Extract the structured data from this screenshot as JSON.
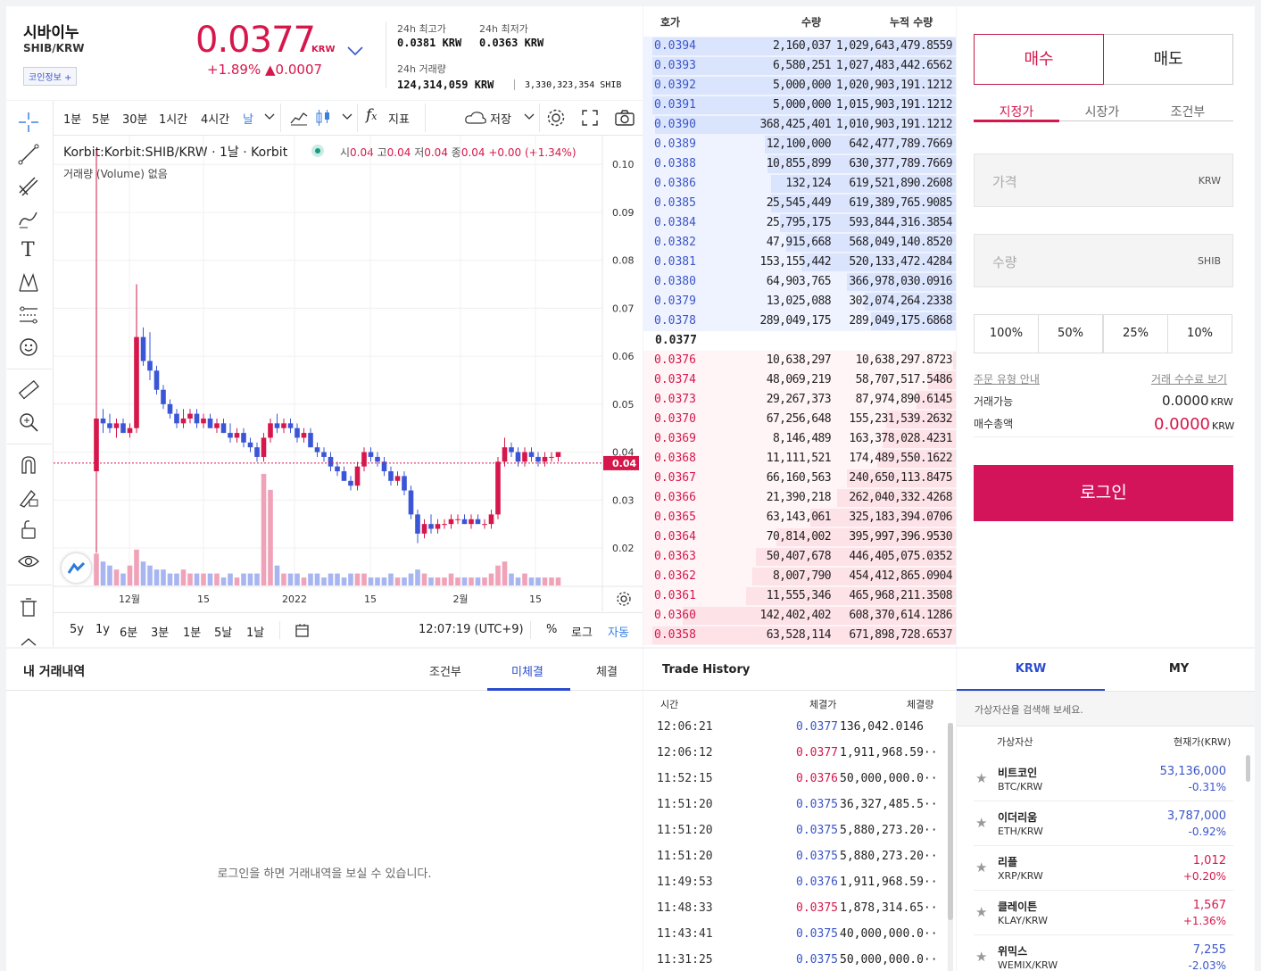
{
  "header": {
    "coin_name": "시바이누",
    "pair": "SHIB/KRW",
    "coin_info_btn": "코인정보 +",
    "price": "0.0377",
    "price_unit": "KRW",
    "change_pct": "+1.89%",
    "change_abs": "▲0.0007",
    "high_label": "24h 최고가",
    "high_value": "0.0381 KRW",
    "low_label": "24h 최저가",
    "low_value": "0.0363 KRW",
    "volume_label": "24h 거래량",
    "volume_value": "124,314,059 KRW",
    "volume_shib": "3,330,323,354 SHIB"
  },
  "chart_toolbar": {
    "intervals": [
      "1분",
      "5분",
      "30분",
      "1시간",
      "4시간",
      "날"
    ],
    "indicator": "지표",
    "save": "저장"
  },
  "chart_legend": {
    "symbol": "Korbit:Korbit:SHIB/KRW · 1날 · Korbit",
    "o_label": "시",
    "o_val": "0.04",
    "h_label": "고",
    "h_val": "0.04",
    "l_label": "저",
    "l_val": "0.04",
    "c_label": "종",
    "c_val": "0.04",
    "chg": "+0.00 (+1.34%)",
    "volume_line": "거래량 (Volume)  없음"
  },
  "chart_bottom": {
    "ranges": [
      "5y",
      "1y",
      "6분",
      "3분",
      "1분",
      "5날",
      "1날"
    ],
    "time": "12:07:19 (UTC+9)",
    "pct": "%",
    "log": "로그",
    "auto": "자동"
  },
  "chart_data": {
    "type": "candlestick",
    "price_axis_ticks": [
      "0.10",
      "0.09",
      "0.08",
      "0.07",
      "0.06",
      "0.05",
      "0.04",
      "0.03",
      "0.02"
    ],
    "time_axis_ticks": [
      "12월",
      "15",
      "2022",
      "15",
      "2월",
      "15"
    ],
    "current_price_label": "0.04",
    "ylim": [
      0.012,
      0.106
    ],
    "candles": [
      [
        0.036,
        0.103,
        0.019,
        0.047
      ],
      [
        0.047,
        0.049,
        0.044,
        0.046
      ],
      [
        0.046,
        0.048,
        0.044,
        0.045
      ],
      [
        0.045,
        0.047,
        0.043,
        0.046
      ],
      [
        0.046,
        0.047,
        0.044,
        0.044
      ],
      [
        0.044,
        0.046,
        0.043,
        0.045
      ],
      [
        0.045,
        0.075,
        0.044,
        0.064
      ],
      [
        0.064,
        0.066,
        0.058,
        0.059
      ],
      [
        0.059,
        0.065,
        0.055,
        0.057
      ],
      [
        0.057,
        0.058,
        0.052,
        0.053
      ],
      [
        0.053,
        0.054,
        0.049,
        0.05
      ],
      [
        0.05,
        0.051,
        0.047,
        0.048
      ],
      [
        0.048,
        0.049,
        0.045,
        0.046
      ],
      [
        0.046,
        0.049,
        0.045,
        0.047
      ],
      [
        0.047,
        0.049,
        0.046,
        0.048
      ],
      [
        0.048,
        0.049,
        0.045,
        0.046
      ],
      [
        0.046,
        0.048,
        0.045,
        0.047
      ],
      [
        0.047,
        0.048,
        0.045,
        0.045
      ],
      [
        0.045,
        0.047,
        0.044,
        0.046
      ],
      [
        0.046,
        0.047,
        0.044,
        0.044
      ],
      [
        0.044,
        0.046,
        0.042,
        0.043
      ],
      [
        0.043,
        0.045,
        0.042,
        0.044
      ],
      [
        0.044,
        0.045,
        0.041,
        0.042
      ],
      [
        0.042,
        0.043,
        0.04,
        0.041
      ],
      [
        0.041,
        0.042,
        0.038,
        0.039
      ],
      [
        0.039,
        0.044,
        0.038,
        0.043
      ],
      [
        0.043,
        0.047,
        0.042,
        0.046
      ],
      [
        0.046,
        0.048,
        0.044,
        0.045
      ],
      [
        0.045,
        0.047,
        0.044,
        0.046
      ],
      [
        0.046,
        0.047,
        0.044,
        0.045
      ],
      [
        0.045,
        0.046,
        0.042,
        0.043
      ],
      [
        0.043,
        0.045,
        0.042,
        0.044
      ],
      [
        0.044,
        0.045,
        0.041,
        0.041
      ],
      [
        0.041,
        0.042,
        0.039,
        0.04
      ],
      [
        0.04,
        0.041,
        0.038,
        0.039
      ],
      [
        0.039,
        0.04,
        0.036,
        0.037
      ],
      [
        0.037,
        0.038,
        0.035,
        0.036
      ],
      [
        0.036,
        0.037,
        0.034,
        0.034
      ],
      [
        0.034,
        0.035,
        0.032,
        0.033
      ],
      [
        0.033,
        0.038,
        0.032,
        0.037
      ],
      [
        0.037,
        0.041,
        0.036,
        0.04
      ],
      [
        0.04,
        0.041,
        0.038,
        0.039
      ],
      [
        0.039,
        0.04,
        0.037,
        0.038
      ],
      [
        0.038,
        0.039,
        0.035,
        0.036
      ],
      [
        0.036,
        0.037,
        0.033,
        0.034
      ],
      [
        0.034,
        0.036,
        0.033,
        0.035
      ],
      [
        0.035,
        0.036,
        0.031,
        0.032
      ],
      [
        0.032,
        0.033,
        0.026,
        0.027
      ],
      [
        0.027,
        0.028,
        0.021,
        0.023
      ],
      [
        0.023,
        0.026,
        0.022,
        0.025
      ],
      [
        0.025,
        0.027,
        0.023,
        0.024
      ],
      [
        0.024,
        0.026,
        0.023,
        0.025
      ],
      [
        0.025,
        0.026,
        0.024,
        0.025
      ],
      [
        0.025,
        0.027,
        0.024,
        0.026
      ],
      [
        0.026,
        0.027,
        0.025,
        0.026
      ],
      [
        0.026,
        0.027,
        0.025,
        0.025
      ],
      [
        0.025,
        0.027,
        0.024,
        0.026
      ],
      [
        0.026,
        0.027,
        0.025,
        0.025
      ],
      [
        0.025,
        0.026,
        0.024,
        0.025
      ],
      [
        0.025,
        0.028,
        0.024,
        0.027
      ],
      [
        0.027,
        0.039,
        0.026,
        0.038
      ],
      [
        0.038,
        0.043,
        0.037,
        0.041
      ],
      [
        0.041,
        0.042,
        0.039,
        0.04
      ],
      [
        0.04,
        0.041,
        0.037,
        0.038
      ],
      [
        0.038,
        0.041,
        0.037,
        0.04
      ],
      [
        0.04,
        0.041,
        0.038,
        0.039
      ],
      [
        0.039,
        0.04,
        0.037,
        0.038
      ],
      [
        0.038,
        0.04,
        0.037,
        0.039
      ],
      [
        0.039,
        0.04,
        0.038,
        0.039
      ],
      [
        0.039,
        0.04,
        0.038,
        0.04
      ]
    ],
    "volumes": [
      8,
      6,
      5,
      4,
      3,
      5,
      9,
      6,
      5,
      4,
      4,
      3,
      3,
      4,
      3,
      3,
      3,
      3,
      3,
      2,
      3,
      2,
      3,
      3,
      3,
      28,
      24,
      5,
      3,
      3,
      3,
      2,
      3,
      3,
      2,
      3,
      3,
      2,
      3,
      3,
      3,
      2,
      2,
      2,
      3,
      2,
      2,
      3,
      4,
      3,
      2,
      2,
      2,
      3,
      2,
      2,
      2,
      2,
      2,
      3,
      5,
      6,
      3,
      2,
      3,
      2,
      2,
      2,
      2,
      2
    ]
  },
  "orderbook": {
    "headers": [
      "호가",
      "수량",
      "누적 수량"
    ],
    "current_price": "0.0377",
    "asks": [
      {
        "price": "0.0394",
        "qty": "2,160,037",
        "cum": "1,029,643,479.8559",
        "w": 1.0
      },
      {
        "price": "0.0393",
        "qty": "6,580,251",
        "cum": "1,027,483,442.6562",
        "w": 1.0
      },
      {
        "price": "0.0392",
        "qty": "5,000,000",
        "cum": "1,020,903,191.1212",
        "w": 1.0
      },
      {
        "price": "0.0391",
        "qty": "5,000,000",
        "cum": "1,015,903,191.1212",
        "w": 1.0
      },
      {
        "price": "0.0390",
        "qty": "368,425,401",
        "cum": "1,010,903,191.1212",
        "w": 0.99
      },
      {
        "price": "0.0389",
        "qty": "12,100,000",
        "cum": "642,477,789.7669",
        "w": 0.63
      },
      {
        "price": "0.0388",
        "qty": "10,855,899",
        "cum": "630,377,789.7669",
        "w": 0.62
      },
      {
        "price": "0.0386",
        "qty": "132,124",
        "cum": "619,521,890.2608",
        "w": 0.61
      },
      {
        "price": "0.0385",
        "qty": "25,545,449",
        "cum": "619,389,765.9085",
        "w": 0.61
      },
      {
        "price": "0.0384",
        "qty": "25,795,175",
        "cum": "593,844,316.3854",
        "w": 0.58
      },
      {
        "price": "0.0382",
        "qty": "47,915,668",
        "cum": "568,049,140.8520",
        "w": 0.56
      },
      {
        "price": "0.0381",
        "qty": "153,155,442",
        "cum": "520,133,472.4284",
        "w": 0.51
      },
      {
        "price": "0.0380",
        "qty": "64,903,765",
        "cum": "366,978,030.0916",
        "w": 0.36
      },
      {
        "price": "0.0379",
        "qty": "13,025,088",
        "cum": "302,074,264.2338",
        "w": 0.3
      },
      {
        "price": "0.0378",
        "qty": "289,049,175",
        "cum": "289,049,175.6868",
        "w": 0.28
      }
    ],
    "bids": [
      {
        "price": "0.0376",
        "qty": "10,638,297",
        "cum": "10,638,297.8723",
        "w": 0.01
      },
      {
        "price": "0.0374",
        "qty": "48,069,219",
        "cum": "58,707,517.5486",
        "w": 0.09
      },
      {
        "price": "0.0373",
        "qty": "29,267,373",
        "cum": "87,974,890.6145",
        "w": 0.13
      },
      {
        "price": "0.0370",
        "qty": "67,256,648",
        "cum": "155,231,539.2632",
        "w": 0.23
      },
      {
        "price": "0.0369",
        "qty": "8,146,489",
        "cum": "163,378,028.4231",
        "w": 0.24
      },
      {
        "price": "0.0368",
        "qty": "11,111,521",
        "cum": "174,489,550.1622",
        "w": 0.26
      },
      {
        "price": "0.0367",
        "qty": "66,160,563",
        "cum": "240,650,113.8475",
        "w": 0.36
      },
      {
        "price": "0.0366",
        "qty": "21,390,218",
        "cum": "262,040,332.4268",
        "w": 0.39
      },
      {
        "price": "0.0365",
        "qty": "63,143,061",
        "cum": "325,183,394.0706",
        "w": 0.48
      },
      {
        "price": "0.0364",
        "qty": "70,814,002",
        "cum": "395,997,396.9530",
        "w": 0.59
      },
      {
        "price": "0.0363",
        "qty": "50,407,678",
        "cum": "446,405,075.0352",
        "w": 0.66
      },
      {
        "price": "0.0362",
        "qty": "8,007,790",
        "cum": "454,412,865.0904",
        "w": 0.67
      },
      {
        "price": "0.0361",
        "qty": "11,555,346",
        "cum": "465,968,211.3508",
        "w": 0.69
      },
      {
        "price": "0.0360",
        "qty": "142,402,402",
        "cum": "608,370,614.1286",
        "w": 0.9
      },
      {
        "price": "0.0358",
        "qty": "63,528,114",
        "cum": "671,898,728.6537",
        "w": 1.0
      }
    ]
  },
  "order_form": {
    "buy_tab": "매수",
    "sell_tab": "매도",
    "types": [
      "지정가",
      "시장가",
      "조건부"
    ],
    "price_ph": "가격",
    "price_unit": "KRW",
    "qty_ph": "수량",
    "qty_unit": "SHIB",
    "pcts": [
      "100%",
      "50%",
      "25%",
      "10%"
    ],
    "guide_link": "주문 유형 안내",
    "fee_link": "거래 수수료 보기",
    "available_label": "거래가능",
    "available_value": "0.0000",
    "total_label": "매수총액",
    "total_value": "0.0000",
    "unit": "KRW",
    "login": "로그인"
  },
  "my_trades": {
    "title": "내 거래내역",
    "tabs": [
      "조건부",
      "미체결",
      "체결"
    ],
    "empty_msg": "로그인을 하면 거래내역을 보실 수 있습니다."
  },
  "trade_history": {
    "title": "Trade History",
    "headers": [
      "시간",
      "체결가",
      "체결량"
    ],
    "rows": [
      {
        "time": "12:06:21",
        "price": "0.0377",
        "amount": "136,042.0146",
        "color": "#3a55c8"
      },
      {
        "time": "12:06:12",
        "price": "0.0377",
        "amount": "1,911,968.59··",
        "color": "#d6174b"
      },
      {
        "time": "11:52:15",
        "price": "0.0376",
        "amount": "50,000,000.0··",
        "color": "#d6174b"
      },
      {
        "time": "11:51:20",
        "price": "0.0375",
        "amount": "36,327,485.5··",
        "color": "#3a55c8"
      },
      {
        "time": "11:51:20",
        "price": "0.0375",
        "amount": "5,880,273.20··",
        "color": "#3a55c8"
      },
      {
        "time": "11:51:20",
        "price": "0.0375",
        "amount": "5,880,273.20··",
        "color": "#3a55c8"
      },
      {
        "time": "11:49:53",
        "price": "0.0376",
        "amount": "1,911,968.59··",
        "color": "#3a55c8"
      },
      {
        "time": "11:48:33",
        "price": "0.0375",
        "amount": "1,878,314.65··",
        "color": "#d6174b"
      },
      {
        "time": "11:43:41",
        "price": "0.0375",
        "amount": "40,000,000.0··",
        "color": "#3a55c8"
      },
      {
        "time": "11:31:25",
        "price": "0.0375",
        "amount": "50,000,000.0··",
        "color": "#3a55c8"
      }
    ]
  },
  "market": {
    "tabs": [
      "KRW",
      "MY"
    ],
    "search_ph": "가상자산을 검색해 보세요.",
    "col_asset": "가상자산",
    "col_price": "현재가(KRW)",
    "coins": [
      {
        "name": "비트코인",
        "pair": "BTC/KRW",
        "price": "53,136,000",
        "chg": "-0.31%",
        "color": "#3a55c8"
      },
      {
        "name": "이더리움",
        "pair": "ETH/KRW",
        "price": "3,787,000",
        "chg": "-0.92%",
        "color": "#3a55c8"
      },
      {
        "name": "리플",
        "pair": "XRP/KRW",
        "price": "1,012",
        "chg": "+0.20%",
        "color": "#d6174b"
      },
      {
        "name": "클레이튼",
        "pair": "KLAY/KRW",
        "price": "1,567",
        "chg": "+1.36%",
        "color": "#d6174b"
      },
      {
        "name": "위믹스",
        "pair": "WEMIX/KRW",
        "price": "7,255",
        "chg": "-2.03%",
        "color": "#3a55c8"
      }
    ]
  }
}
